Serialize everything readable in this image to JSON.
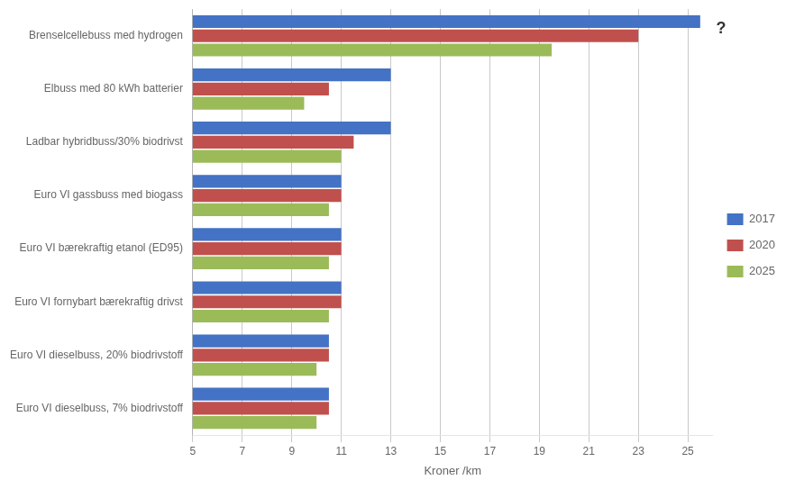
{
  "chart_data": {
    "type": "bar",
    "orientation": "horizontal",
    "categories": [
      "Brenselcellebuss med hydrogen",
      "Elbuss med 80 kWh batterier",
      "Ladbar hybridbuss/30% biodrivst",
      "Euro VI gassbuss med biogass",
      "Euro VI bærekraftig etanol (ED95)",
      "Euro VI fornybart bærekraftig drivst",
      "Euro VI dieselbuss, 20% biodrivstoff",
      "Euro VI dieselbuss, 7% biodrivstoff"
    ],
    "series": [
      {
        "name": "2017",
        "color": "#4472C4",
        "values": [
          25.5,
          13.0,
          13.0,
          11.0,
          11.0,
          11.0,
          10.5,
          10.5
        ]
      },
      {
        "name": "2020",
        "color": "#C0504D",
        "values": [
          23.0,
          10.5,
          11.5,
          11.0,
          11.0,
          11.0,
          10.5,
          10.5
        ]
      },
      {
        "name": "2025",
        "color": "#9BBB59",
        "values": [
          19.5,
          9.5,
          11.0,
          10.5,
          10.5,
          10.5,
          10.0,
          10.0
        ]
      }
    ],
    "xlabel": "Kroner /km",
    "xlim": [
      5,
      26
    ],
    "xticks": [
      5,
      7,
      9,
      11,
      13,
      15,
      17,
      19,
      21,
      23,
      25
    ],
    "grid": "x",
    "legend": "right",
    "annotations": [
      {
        "text": "?",
        "x": 26,
        "category": "Brenselcellebuss med hydrogen"
      }
    ]
  }
}
